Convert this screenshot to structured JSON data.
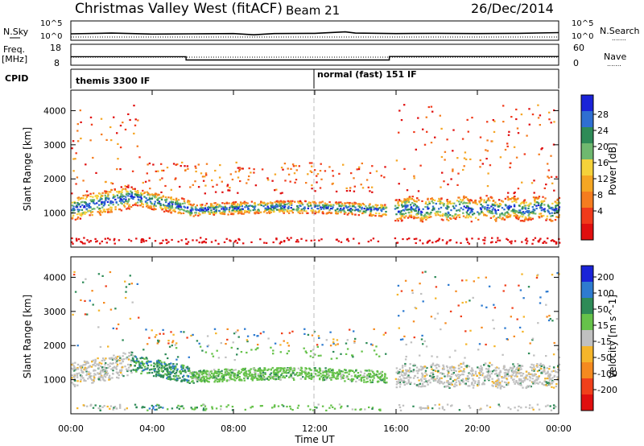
{
  "header": {
    "station": "Christmas Valley West (fitACF)",
    "beam": "Beam 21",
    "date": "26/Dec/2014"
  },
  "labels": {
    "nsky": "N.Sky",
    "nsearch": "N.Search",
    "freq": "Freq.",
    "freq_unit": "[MHz]",
    "nave": "Nave",
    "cpid": "CPID",
    "e5": "10^5",
    "e0": "10^0",
    "dots": "......."
  },
  "cpid_segments": [
    {
      "label": "themis 3300 IF"
    },
    {
      "label": "normal (fast) 151 IF"
    }
  ],
  "colors": {
    "power": [
      "#1a23d8",
      "#2f6fd2",
      "#2e8b57",
      "#6fb86f",
      "#f5d23a",
      "#f5a623",
      "#f57c1f",
      "#f03a1b",
      "#e00f0f"
    ],
    "velocity": [
      "#1a23d8",
      "#2e7bd0",
      "#2e8b57",
      "#66c24a",
      "#c0c0c0",
      "#f5b52a",
      "#f58a1f",
      "#f0401b",
      "#e00f0f"
    ]
  },
  "chart_data": [
    {
      "type": "line",
      "panel": "noise",
      "x": [
        "00:00",
        "02:00",
        "04:00",
        "06:00",
        "08:00",
        "09:00",
        "10:00",
        "12:00",
        "13:30",
        "14:00",
        "16:00",
        "18:00",
        "20:00",
        "22:00",
        "24:00"
      ],
      "series": [
        {
          "name": "N.Sky",
          "values": [
            1.0,
            1.3,
            0.9,
            1.0,
            1.1,
            0.6,
            1.1,
            1.2,
            1.8,
            1.3,
            1.1,
            1.2,
            1.1,
            1.2,
            1.5
          ]
        }
      ],
      "ytick_labels": [
        "10^5",
        "10^0"
      ]
    },
    {
      "type": "line",
      "panel": "frequency",
      "left_axis": {
        "label": "Freq. [MHz]",
        "ticks": [
          8,
          18
        ]
      },
      "right_axis": {
        "label": "Nave",
        "ticks": [
          0,
          60
        ]
      },
      "series": [
        {
          "name": "Freq.",
          "points": [
            [
              "00:00",
              12.0
            ],
            [
              "05:40",
              12.0
            ],
            [
              "05:40",
              10.3
            ],
            [
              "15:40",
              10.3
            ],
            [
              "15:40",
              12.1
            ],
            [
              "24:00",
              12.1
            ]
          ]
        }
      ]
    },
    {
      "type": "heatmap",
      "panel": "power",
      "ylabel": "Slant Range [km]",
      "yticks": [
        1000,
        2000,
        3000,
        4000
      ],
      "ylim": [
        0,
        4600
      ],
      "colorbar": {
        "label": "Power [dB]",
        "ticks": [
          4,
          8,
          12,
          16,
          20,
          24,
          28
        ]
      }
    },
    {
      "type": "heatmap",
      "panel": "velocity",
      "ylabel": "Slant Range [km]",
      "yticks": [
        1000,
        2000,
        3000,
        4000
      ],
      "ylim": [
        0,
        4600
      ],
      "colorbar": {
        "label": "Velocity [m s^-1]",
        "ticks": [
          200,
          100,
          50,
          15,
          -15,
          -50,
          -100,
          -200
        ]
      }
    }
  ],
  "time_axis": {
    "label": "Time UT",
    "ticks": [
      "00:00",
      "04:00",
      "08:00",
      "12:00",
      "16:00",
      "20:00",
      "00:00"
    ]
  }
}
